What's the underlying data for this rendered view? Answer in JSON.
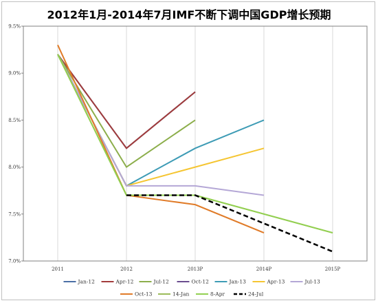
{
  "chart_data": {
    "type": "line",
    "title": "2012年1月-2014年7月IMF不断下调中国GDP增长预期",
    "categories": [
      "2011",
      "2012",
      "2013P",
      "2014P",
      "2015P"
    ],
    "y_tick_labels": [
      "7.0%",
      "7.5%",
      "8.0%",
      "8.5%",
      "9.0%",
      "9.5%"
    ],
    "ylim": [
      7.0,
      9.5
    ],
    "grid": "vertical lines at categories",
    "legend_position": "bottom",
    "series": [
      {
        "name": "Jan-12",
        "color": "#4a6fa5",
        "dashed": false,
        "values": [
          9.2,
          8.2,
          8.8,
          null,
          null
        ]
      },
      {
        "name": "Apr-12",
        "color": "#a23b3b",
        "dashed": false,
        "values": [
          9.2,
          8.2,
          8.8,
          null,
          null
        ]
      },
      {
        "name": "Jul-12",
        "color": "#8cae4b",
        "dashed": false,
        "values": [
          9.2,
          8.0,
          8.5,
          null,
          null
        ]
      },
      {
        "name": "Oct-12",
        "color": "#6b4c8f",
        "dashed": false,
        "values": [
          9.2,
          7.8,
          null,
          null,
          null
        ]
      },
      {
        "name": "Jan-13",
        "color": "#3d9bb5",
        "dashed": false,
        "values": [
          9.2,
          7.8,
          8.2,
          8.5,
          null
        ]
      },
      {
        "name": "Apr-13",
        "color": "#f5c531",
        "dashed": false,
        "values": [
          9.2,
          7.8,
          8.0,
          8.2,
          null
        ]
      },
      {
        "name": "Jul-13",
        "color": "#b4a7d6",
        "dashed": false,
        "values": [
          9.2,
          7.8,
          7.8,
          7.7,
          null
        ]
      },
      {
        "name": "Oct-13",
        "color": "#e07b28",
        "dashed": false,
        "values": [
          9.3,
          7.7,
          7.6,
          7.3,
          null
        ]
      },
      {
        "name": "14-Jan",
        "color": "#9bbb59",
        "dashed": false,
        "values": [
          9.2,
          7.7,
          7.7,
          7.5,
          7.3
        ]
      },
      {
        "name": "8-Apr",
        "color": "#92d050",
        "dashed": false,
        "values": [
          9.2,
          7.7,
          7.7,
          7.5,
          7.3
        ]
      },
      {
        "name": "24-Jul",
        "color": "#000000",
        "dashed": true,
        "values": [
          null,
          7.7,
          7.7,
          7.4,
          7.1
        ]
      }
    ]
  }
}
